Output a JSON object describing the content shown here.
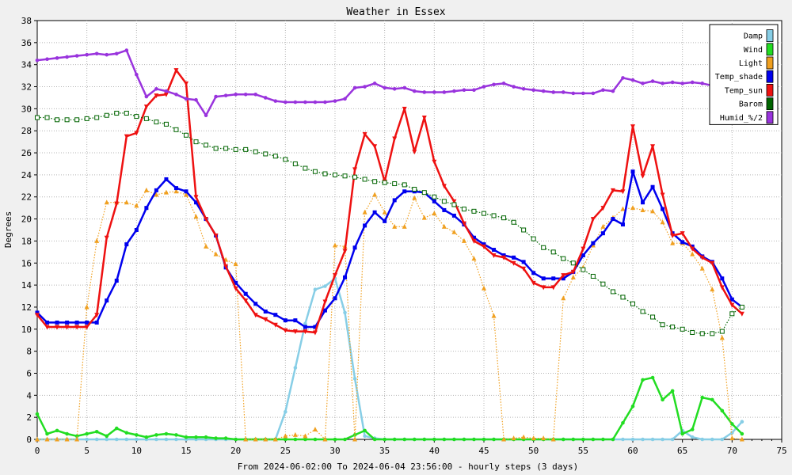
{
  "chart_data": {
    "type": "line",
    "title": "Weather in Essex",
    "xlabel": "From 2024-06-02:00 To 2024-06-04 23:56:00 - hourly steps (3 days)",
    "ylabel": "Degrees",
    "xlim": [
      0,
      75
    ],
    "ylim": [
      0,
      38
    ],
    "xticks": [
      "0",
      "5",
      "10",
      "15",
      "20",
      "25",
      "30",
      "35",
      "40",
      "45",
      "50",
      "55",
      "60",
      "65",
      "70",
      "75"
    ],
    "yticks": [
      "0",
      "2",
      "4",
      "6",
      "8",
      "10",
      "12",
      "14",
      "16",
      "18",
      "20",
      "22",
      "24",
      "26",
      "28",
      "30",
      "32",
      "34",
      "36",
      "38"
    ],
    "grid": true,
    "legend_position": "top-right",
    "series": [
      {
        "name": "Damp",
        "color": "#87cee6",
        "style": "solid",
        "marker": "circle",
        "values": [
          0,
          0,
          0,
          0,
          0,
          0,
          0,
          0,
          0,
          0,
          0,
          0,
          0,
          0,
          0,
          0,
          0,
          0,
          0,
          0,
          0,
          0,
          0,
          0,
          0,
          2.5,
          6.5,
          10.5,
          13.6,
          13.9,
          14.6,
          11.5,
          5.5,
          0.3,
          0.1,
          0,
          0,
          0,
          0,
          0,
          0,
          0,
          0,
          0,
          0,
          0,
          0,
          0,
          0,
          0,
          0,
          0,
          0,
          0,
          0,
          0,
          0,
          0,
          0,
          0,
          0,
          0,
          0,
          0,
          0,
          0.8,
          0.2,
          0,
          0,
          0,
          0.6,
          1.6
        ]
      },
      {
        "name": "Wind",
        "color": "#22dd22",
        "style": "solid",
        "marker": "circle",
        "values": [
          2.3,
          0.5,
          0.8,
          0.5,
          0.3,
          0.5,
          0.7,
          0.3,
          1.0,
          0.6,
          0.4,
          0.2,
          0.4,
          0.5,
          0.4,
          0.2,
          0.2,
          0.2,
          0.1,
          0.1,
          0,
          0,
          0,
          0,
          0,
          0,
          0,
          0,
          0,
          0,
          0,
          0,
          0.4,
          0.8,
          0,
          0,
          0,
          0,
          0,
          0,
          0,
          0,
          0,
          0,
          0,
          0,
          0,
          0,
          0,
          0,
          0,
          0,
          0,
          0,
          0,
          0,
          0,
          0,
          0,
          1.5,
          3.0,
          5.4,
          5.6,
          3.6,
          4.4,
          0.5,
          0.9,
          3.8,
          3.6,
          2.6,
          1.4,
          0.5
        ]
      },
      {
        "name": "Light",
        "color": "#f0a020",
        "style": "dotted",
        "marker": "triangle",
        "values": [
          0,
          0,
          0,
          0,
          0,
          12,
          18,
          21.5,
          21.5,
          21.5,
          21.2,
          22.6,
          22.2,
          22.4,
          22.5,
          22.2,
          20.2,
          17.5,
          16.8,
          16.3,
          15.9,
          0,
          0,
          0,
          0,
          0.3,
          0.4,
          0.3,
          0.9,
          0,
          17.6,
          17.5,
          0,
          20.6,
          22.2,
          20.6,
          19.3,
          19.3,
          21.9,
          20.1,
          20.5,
          19.3,
          18.8,
          18.0,
          16.4,
          13.7,
          11.2,
          0,
          0.1,
          0.2,
          0.1,
          0.1,
          0,
          12.8,
          14.7,
          15.6,
          17.6,
          19.3,
          20.1,
          20.9,
          21.0,
          20.8,
          20.7,
          19.7,
          17.8,
          17.8,
          16.8,
          15.5,
          13.6,
          9.2,
          0.1,
          0
        ]
      },
      {
        "name": "Temp_shade",
        "color": "#0000ee",
        "style": "solid",
        "marker": "square",
        "values": [
          11.5,
          10.6,
          10.6,
          10.6,
          10.6,
          10.6,
          10.6,
          12.6,
          14.4,
          17.7,
          19.0,
          21.0,
          22.6,
          23.6,
          22.8,
          22.5,
          21.5,
          20.0,
          18.5,
          15.6,
          14.2,
          13.2,
          12.3,
          11.6,
          11.3,
          10.8,
          10.8,
          10.2,
          10.2,
          11.7,
          12.8,
          14.7,
          17.4,
          19.4,
          20.6,
          19.8,
          21.7,
          22.5,
          22.5,
          22.4,
          21.6,
          20.8,
          20.3,
          19.5,
          18.3,
          17.7,
          17.2,
          16.7,
          16.5,
          16.1,
          15.1,
          14.6,
          14.6,
          14.6,
          15.2,
          16.7,
          17.8,
          18.7,
          20.0,
          19.5,
          24.3,
          21.5,
          22.9,
          20.9,
          18.7,
          17.9,
          17.5,
          16.6,
          16.1,
          14.6,
          12.7,
          12.0
        ]
      },
      {
        "name": "Temp_sun",
        "color": "#ee1111",
        "style": "solid",
        "marker": "triangle-down",
        "values": [
          11.3,
          10.2,
          10.2,
          10.2,
          10.2,
          10.2,
          11.3,
          18.3,
          21.4,
          27.5,
          27.8,
          30.2,
          31.2,
          31.3,
          33.5,
          32.3,
          22.0,
          20.0,
          18.5,
          15.7,
          13.7,
          12.6,
          11.3,
          10.9,
          10.4,
          9.9,
          9.8,
          9.8,
          9.7,
          12.5,
          14.9,
          17.1,
          24.5,
          27.7,
          26.6,
          23.4,
          27.3,
          30.0,
          26.1,
          29.2,
          25.2,
          23.0,
          21.6,
          19.6,
          18.0,
          17.5,
          16.7,
          16.5,
          16.0,
          15.5,
          14.2,
          13.8,
          13.8,
          14.9,
          15.2,
          17.3,
          20.0,
          21.0,
          22.6,
          22.5,
          28.4,
          23.9,
          26.6,
          22.2,
          18.5,
          18.7,
          17.3,
          16.5,
          16.0,
          13.8,
          12.2,
          11.4
        ]
      },
      {
        "name": "Barom",
        "color": "#006400",
        "style": "dotted",
        "marker": "square-open",
        "values": [
          29.2,
          29.2,
          29.0,
          29.0,
          29.0,
          29.1,
          29.2,
          29.4,
          29.6,
          29.6,
          29.3,
          29.1,
          28.8,
          28.6,
          28.1,
          27.6,
          27.0,
          26.7,
          26.4,
          26.4,
          26.3,
          26.3,
          26.1,
          25.9,
          25.7,
          25.4,
          25.0,
          24.6,
          24.3,
          24.1,
          24.0,
          23.9,
          23.8,
          23.6,
          23.4,
          23.3,
          23.2,
          23.1,
          22.7,
          22.4,
          22.0,
          21.6,
          21.3,
          20.9,
          20.7,
          20.5,
          20.3,
          20.1,
          19.7,
          19.0,
          18.2,
          17.4,
          17.0,
          16.4,
          16.0,
          15.4,
          14.8,
          14.1,
          13.4,
          12.9,
          12.3,
          11.6,
          11.1,
          10.4,
          10.2,
          10.0,
          9.7,
          9.6,
          9.6,
          9.8,
          11.4,
          12.0
        ]
      },
      {
        "name": "Humid_%/2",
        "color": "#9933dd",
        "style": "solid",
        "marker": "circle",
        "values": [
          34.4,
          34.5,
          34.6,
          34.7,
          34.8,
          34.9,
          35.0,
          34.9,
          35.0,
          35.3,
          33.1,
          31.1,
          31.8,
          31.6,
          31.3,
          30.9,
          30.8,
          29.4,
          31.1,
          31.2,
          31.3,
          31.3,
          31.3,
          31.0,
          30.7,
          30.6,
          30.6,
          30.6,
          30.6,
          30.6,
          30.7,
          30.9,
          31.9,
          32.0,
          32.3,
          31.9,
          31.8,
          31.9,
          31.6,
          31.5,
          31.5,
          31.5,
          31.6,
          31.7,
          31.7,
          32.0,
          32.2,
          32.3,
          32.0,
          31.8,
          31.7,
          31.6,
          31.5,
          31.5,
          31.4,
          31.4,
          31.4,
          31.7,
          31.6,
          32.8,
          32.6,
          32.3,
          32.5,
          32.3,
          32.4,
          32.3,
          32.4,
          32.3,
          32.1,
          31.9,
          32.0,
          32.1
        ]
      }
    ]
  }
}
